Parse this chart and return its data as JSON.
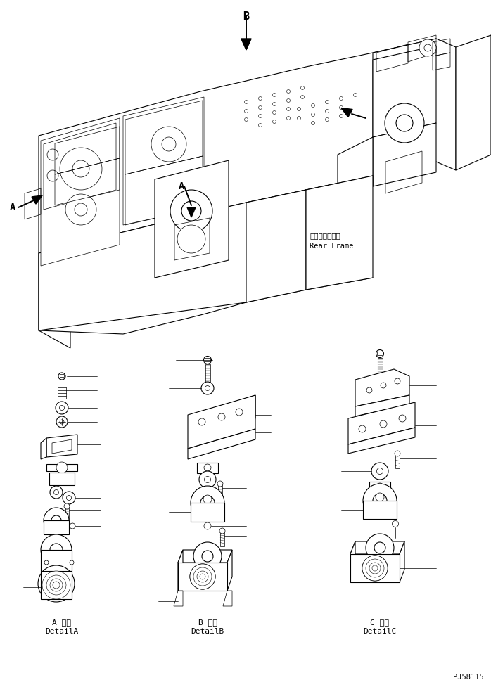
{
  "bg_color": "#ffffff",
  "line_color": "#000000",
  "fig_width": 6.98,
  "fig_height": 9.77,
  "dpi": 100,
  "title_bottom": "PJ58115",
  "label_A_line1": "A 詳細",
  "label_A_line2": "DetailA",
  "label_B_line1": "B 詳細",
  "label_B_line2": "DetailB",
  "label_C_line1": "C 詳細",
  "label_C_line2": "DetailC",
  "rear_frame_line1": "リヤーフレーム",
  "rear_frame_line2": "Rear Frame",
  "label_B_top": "B",
  "label_A_side": "A",
  "lw_main": 0.8,
  "lw_thin": 0.5,
  "lw_thick": 1.4
}
